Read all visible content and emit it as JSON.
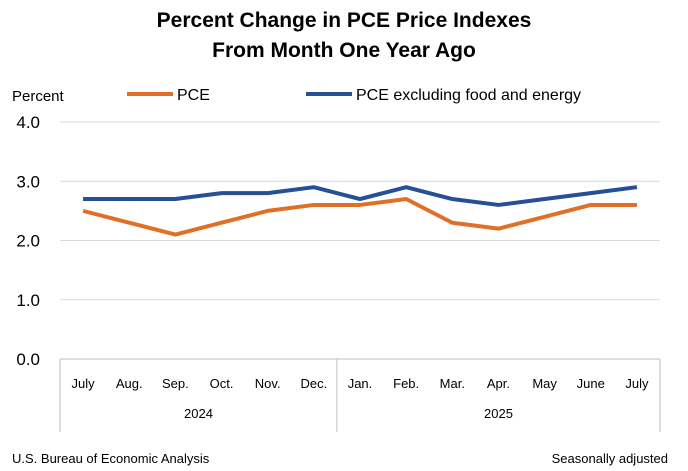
{
  "chart_data": {
    "type": "line",
    "title": [
      "Percent Change in PCE Price Indexes",
      "From Month One Year Ago"
    ],
    "ylabel": "Percent",
    "ylim": [
      0,
      4
    ],
    "yticks": [
      "0.0",
      "1.0",
      "2.0",
      "3.0",
      "4.0"
    ],
    "categories": [
      "July",
      "Aug.",
      "Sep.",
      "Oct.",
      "Nov.",
      "Dec.",
      "Jan.",
      "Feb.",
      "Mar.",
      "Apr.",
      "May",
      "June",
      "July"
    ],
    "years": [
      {
        "label": "2024",
        "start": 0,
        "end": 5
      },
      {
        "label": "2025",
        "start": 6,
        "end": 12
      }
    ],
    "grid": true,
    "legend": "top",
    "series": [
      {
        "name": "PCE",
        "color": "#e07028",
        "values": [
          2.5,
          2.3,
          2.1,
          2.3,
          2.5,
          2.6,
          2.6,
          2.7,
          2.3,
          2.2,
          2.4,
          2.6,
          2.6
        ]
      },
      {
        "name": "PCE excluding food and energy",
        "color": "#264f96",
        "values": [
          2.7,
          2.7,
          2.7,
          2.8,
          2.8,
          2.9,
          2.7,
          2.9,
          2.7,
          2.6,
          2.7,
          2.8,
          2.9
        ]
      }
    ],
    "source": "U.S. Bureau of Economic Analysis",
    "note": "Seasonally adjusted"
  }
}
